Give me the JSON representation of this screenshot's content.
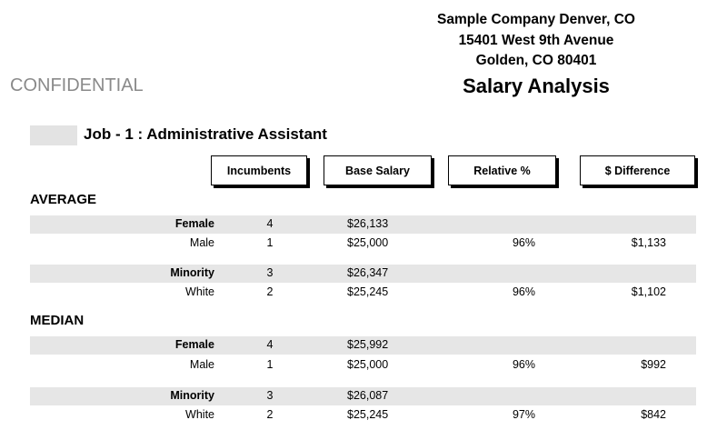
{
  "header": {
    "company_lines": [
      "Sample Company Denver, CO",
      "15401 West 9th Avenue",
      "Golden, CO 80401"
    ],
    "report_title": "Salary Analysis",
    "confidential": "CONFIDENTIAL"
  },
  "job": {
    "title": "Job - 1 : Administrative Assistant"
  },
  "columns": [
    "Incumbents",
    "Base Salary",
    "Relative %",
    "$ Difference"
  ],
  "sections": [
    {
      "name": "AVERAGE",
      "groups": [
        [
          {
            "label": "Female",
            "incumbents": "4",
            "base_salary": "$26,133",
            "relative": "",
            "difference": ""
          },
          {
            "label": "Male",
            "incumbents": "1",
            "base_salary": "$25,000",
            "relative": "96%",
            "difference": "$1,133"
          }
        ],
        [
          {
            "label": "Minority",
            "incumbents": "3",
            "base_salary": "$26,347",
            "relative": "",
            "difference": ""
          },
          {
            "label": "White",
            "incumbents": "2",
            "base_salary": "$25,245",
            "relative": "96%",
            "difference": "$1,102"
          }
        ]
      ]
    },
    {
      "name": "MEDIAN",
      "groups": [
        [
          {
            "label": "Female",
            "incumbents": "4",
            "base_salary": "$25,992",
            "relative": "",
            "difference": ""
          },
          {
            "label": "Male",
            "incumbents": "1",
            "base_salary": "$25,000",
            "relative": "96%",
            "difference": "$992"
          }
        ],
        [
          {
            "label": "Minority",
            "incumbents": "3",
            "base_salary": "$26,087",
            "relative": "",
            "difference": ""
          },
          {
            "label": "White",
            "incumbents": "2",
            "base_salary": "$25,245",
            "relative": "97%",
            "difference": "$842"
          }
        ]
      ]
    }
  ]
}
